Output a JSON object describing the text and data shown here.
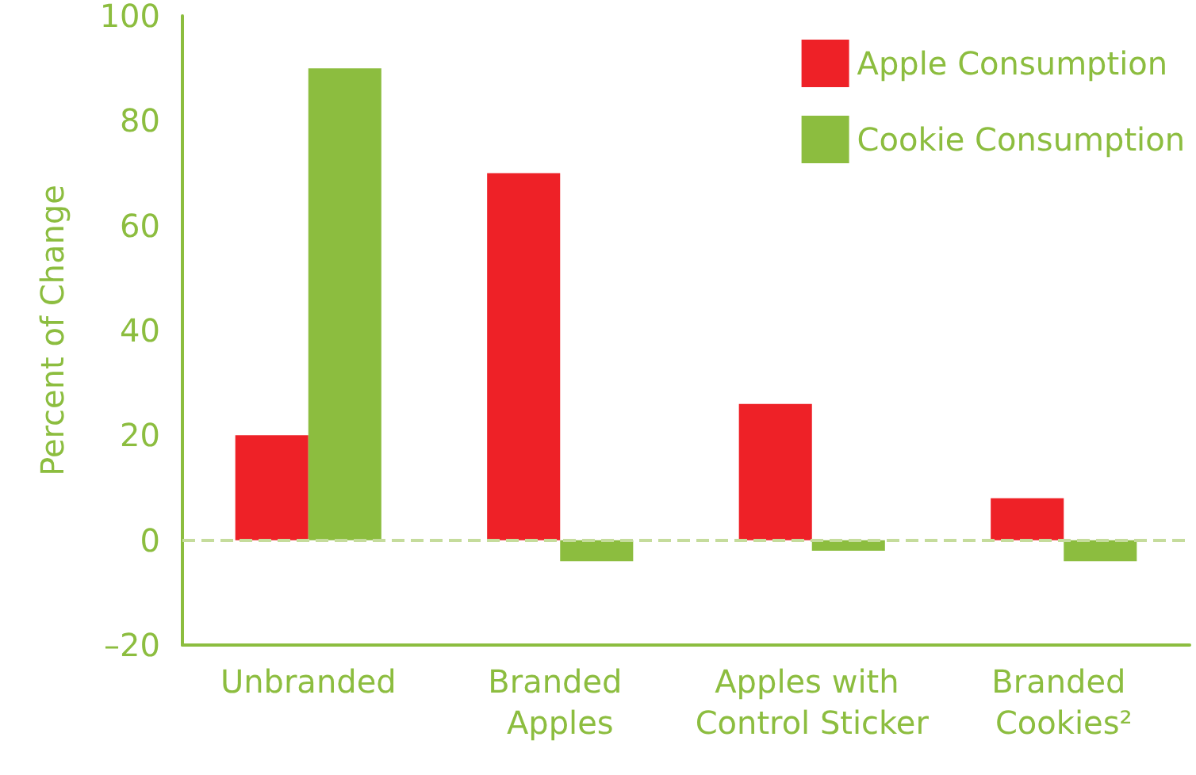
{
  "chart_data": {
    "type": "bar",
    "ylabel": "Percent of Change",
    "categories": [
      "Unbranded",
      "Branded Apples",
      "Apples with Control Sticker",
      "Branded Cookies²"
    ],
    "series": [
      {
        "name": "Apple Consumption",
        "color": "#ee2127",
        "values": [
          20,
          70,
          26,
          8
        ]
      },
      {
        "name": "Cookie Consumption",
        "color": "#8cbd3f",
        "values": [
          90,
          -4,
          -2,
          -4
        ]
      }
    ],
    "ylim": [
      -20,
      100
    ],
    "yticks": [
      {
        "value": -20,
        "label": "–20"
      },
      0,
      20,
      40,
      60,
      80,
      100
    ],
    "ref_lines": [
      {
        "axis": "y",
        "value": 0,
        "color": "#c5dc9c",
        "line_style": "dashed"
      }
    ],
    "grid": false,
    "legend": "top right"
  }
}
